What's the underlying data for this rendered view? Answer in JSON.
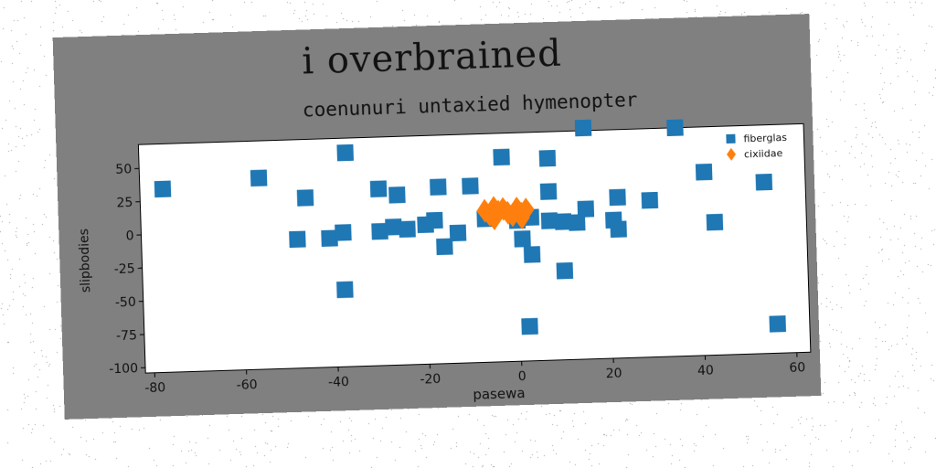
{
  "suptitle": "i overbrained",
  "chart_data": {
    "type": "scatter",
    "title": "coenunuri untaxied hymenopter",
    "xlabel": "pasewa",
    "ylabel": "slipbodies",
    "xlim": [
      -82,
      63
    ],
    "ylim": [
      -104,
      68
    ],
    "xticks": [
      -80,
      -60,
      -40,
      -20,
      0,
      20,
      40,
      60
    ],
    "yticks": [
      50,
      25,
      0,
      -25,
      -50,
      -75,
      -100
    ],
    "legend_position": "top-right",
    "grid": false,
    "series": [
      {
        "name": "fiberglas",
        "marker": "square",
        "color": "#1f77b4",
        "points": [
          [
            -77,
            34
          ],
          [
            -56,
            40
          ],
          [
            -46,
            24
          ],
          [
            -37,
            57
          ],
          [
            -30,
            29
          ],
          [
            -26,
            24
          ],
          [
            -17,
            29
          ],
          [
            -10,
            29
          ],
          [
            -3,
            50
          ],
          [
            7,
            48
          ],
          [
            15,
            70
          ],
          [
            35,
            68
          ],
          [
            41,
            34
          ],
          [
            54,
            25
          ],
          [
            22,
            17
          ],
          [
            29,
            14
          ],
          [
            7,
            23
          ],
          [
            15,
            9
          ],
          [
            -48,
            -7
          ],
          [
            -41,
            -7
          ],
          [
            -38,
            -3
          ],
          [
            -30,
            -3
          ],
          [
            -27,
            0
          ],
          [
            -24,
            -2
          ],
          [
            -20,
            1
          ],
          [
            -18,
            4
          ],
          [
            -16,
            -16
          ],
          [
            -13,
            -6
          ],
          [
            -7,
            4
          ],
          [
            0,
            2
          ],
          [
            3,
            4
          ],
          [
            1,
            -12
          ],
          [
            3,
            -24
          ],
          [
            7,
            1
          ],
          [
            10,
            0
          ],
          [
            13,
            -1
          ],
          [
            21,
            0
          ],
          [
            22,
            -7
          ],
          [
            43,
            -4
          ],
          [
            -38,
            -46
          ],
          [
            10,
            -37
          ],
          [
            2,
            -78
          ],
          [
            56,
            -82
          ]
        ]
      },
      {
        "name": "cixiidae",
        "marker": "diamond",
        "color": "#ff7f0e",
        "points": [
          [
            -7,
            10
          ],
          [
            -6,
            7
          ],
          [
            -5,
            4
          ],
          [
            -4,
            9
          ],
          [
            -3,
            11
          ],
          [
            -2,
            8
          ],
          [
            -1,
            6
          ],
          [
            0,
            11
          ],
          [
            1,
            7
          ],
          [
            2,
            10
          ],
          [
            1,
            4
          ],
          [
            -5,
            12
          ]
        ]
      }
    ]
  }
}
